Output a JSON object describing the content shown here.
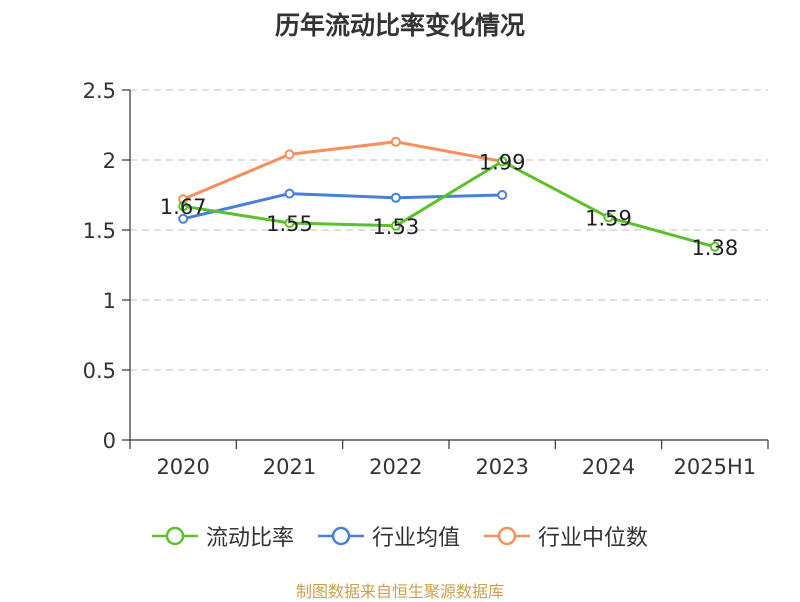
{
  "chart_data": {
    "type": "line",
    "title": "历年流动比率变化情况",
    "categories": [
      "2020",
      "2021",
      "2022",
      "2023",
      "2024",
      "2025H1"
    ],
    "y_ticks": [
      "0",
      "0.5",
      "1",
      "1.5",
      "2",
      "2.5"
    ],
    "ylim": [
      0,
      2.5
    ],
    "grid": true,
    "legend_position": "bottom",
    "series": [
      {
        "name": "流动比率",
        "color": "#5bc12b",
        "values": [
          1.67,
          1.55,
          1.53,
          1.99,
          1.59,
          1.38
        ],
        "labels": [
          "1.67",
          "1.55",
          "1.53",
          "1.99",
          "1.59",
          "1.38"
        ]
      },
      {
        "name": "行业均值",
        "color": "#4a7fd8",
        "values": [
          1.58,
          1.76,
          1.73,
          1.75,
          null,
          null
        ]
      },
      {
        "name": "行业中位数",
        "color": "#f5905a",
        "values": [
          1.72,
          2.04,
          2.13,
          1.99,
          null,
          null
        ]
      }
    ]
  },
  "source_note": "制图数据来自恒生聚源数据库"
}
